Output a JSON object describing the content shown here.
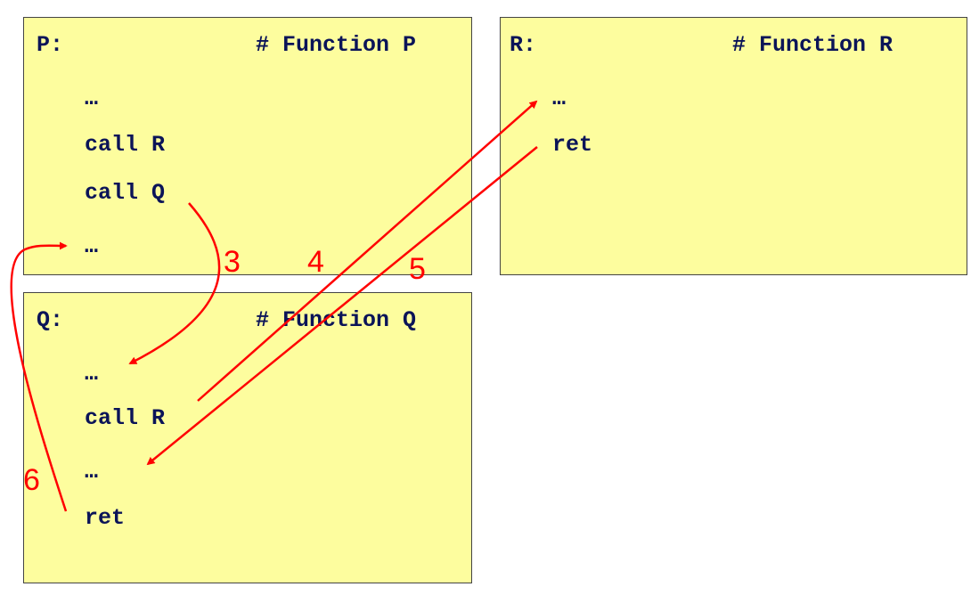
{
  "functions": {
    "p": {
      "label": "P:",
      "comment": "# Function P",
      "lines": [
        "…",
        "call R",
        "call Q",
        "…"
      ]
    },
    "r": {
      "label": "R:",
      "comment": "# Function R",
      "lines": [
        "…",
        "ret"
      ]
    },
    "q": {
      "label": "Q:",
      "comment": "# Function Q",
      "lines": [
        "…",
        "call R",
        "…",
        "ret"
      ]
    }
  },
  "steps": [
    "3",
    "4",
    "5",
    "6"
  ],
  "colors": {
    "box_fill": "#fdfd9e",
    "code_text": "#0b1458",
    "arrow": "#ff0000"
  }
}
